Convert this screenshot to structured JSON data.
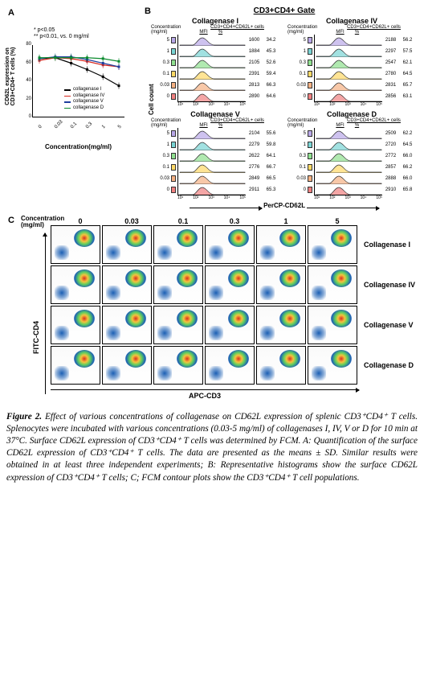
{
  "panelA": {
    "label": "A",
    "stat1": "* p<0.05",
    "stat2": "** p<0.01, vs. 0 mg/ml",
    "y_axis": "CD62L expression on CD3+CD4+ T cells (%)",
    "x_axis": "Concentration(mg/ml)",
    "y_ticks": [
      0,
      20,
      40,
      60,
      80
    ],
    "x_ticks": [
      "0",
      "0.03",
      "0.1",
      "0.3",
      "1",
      "5"
    ],
    "ylim": [
      0,
      80
    ],
    "series": [
      {
        "name": "collagenase I",
        "color": "#000000",
        "values": [
          65,
          66,
          60,
          53,
          45,
          35
        ]
      },
      {
        "name": "collagenase IV",
        "color": "#d9261c",
        "values": [
          63,
          66,
          65,
          62,
          58,
          56
        ]
      },
      {
        "name": "collagenase V",
        "color": "#1f3f9e",
        "values": [
          65,
          67,
          67,
          64,
          60,
          56
        ]
      },
      {
        "name": "collagenase D",
        "color": "#0b8a2e",
        "values": [
          66,
          66,
          66,
          66,
          65,
          62
        ]
      }
    ]
  },
  "panelB": {
    "label": "B",
    "gate_title": "CD3+CD4+ Gate",
    "conc_label_top": "Concentration",
    "conc_label_bot": "(mg/ml)",
    "cells_header": "CD3+CD4+CD62L+ cells",
    "mfi_label": "MFI",
    "pct_label": "%",
    "cell_count_label": "Cell count",
    "percp_label": "PerCP-CD62L",
    "axis_ticks": [
      "10¹",
      "10²",
      "10³",
      "10⁴",
      "10⁵"
    ],
    "conc_values": [
      "5",
      "1",
      "0.3",
      "0.1",
      "0.03",
      "0"
    ],
    "row_colors": [
      "#b9a8e8",
      "#79d4d4",
      "#8fe08f",
      "#ffd966",
      "#f5b183",
      "#f08080"
    ],
    "blocks": [
      {
        "title": "Collagenase I",
        "rows": [
          {
            "mfi": "1600",
            "pct": "34.2"
          },
          {
            "mfi": "1884",
            "pct": "45.3"
          },
          {
            "mfi": "2105",
            "pct": "52.6"
          },
          {
            "mfi": "2391",
            "pct": "59.4"
          },
          {
            "mfi": "2813",
            "pct": "66.3"
          },
          {
            "mfi": "2890",
            "pct": "64.6"
          }
        ]
      },
      {
        "title": "Collagenase IV",
        "rows": [
          {
            "mfi": "2188",
            "pct": "56.2"
          },
          {
            "mfi": "2297",
            "pct": "57.5"
          },
          {
            "mfi": "2547",
            "pct": "62.1"
          },
          {
            "mfi": "2780",
            "pct": "64.5"
          },
          {
            "mfi": "2831",
            "pct": "65.7"
          },
          {
            "mfi": "2856",
            "pct": "63.1"
          }
        ]
      },
      {
        "title": "Collagenase V",
        "rows": [
          {
            "mfi": "2104",
            "pct": "55.6"
          },
          {
            "mfi": "2279",
            "pct": "59.8"
          },
          {
            "mfi": "2622",
            "pct": "64.1"
          },
          {
            "mfi": "2776",
            "pct": "66.7"
          },
          {
            "mfi": "2849",
            "pct": "66.5"
          },
          {
            "mfi": "2911",
            "pct": "65.3"
          }
        ]
      },
      {
        "title": "Collagenase D",
        "rows": [
          {
            "mfi": "2509",
            "pct": "62.2"
          },
          {
            "mfi": "2720",
            "pct": "64.5"
          },
          {
            "mfi": "2772",
            "pct": "66.0"
          },
          {
            "mfi": "2857",
            "pct": "66.2"
          },
          {
            "mfi": "2888",
            "pct": "66.0"
          },
          {
            "mfi": "2910",
            "pct": "65.8"
          }
        ]
      }
    ]
  },
  "panelC": {
    "label": "C",
    "conc_title1": "Concentration",
    "conc_title2": "(mg/ml)",
    "concentrations": [
      "0",
      "0.03",
      "0.1",
      "0.3",
      "1",
      "5"
    ],
    "row_labels": [
      "Collagenase I",
      "Collagenase IV",
      "Collagenase V",
      "Collagenase D"
    ],
    "y_axis": "FITC-CD4",
    "x_axis": "APC-CD3",
    "pop_color_outer": "#1b5fb4",
    "pop_color_inner": "#d92f1f",
    "bg_color": "#ffffff"
  },
  "caption": {
    "fig_label": "Figure 2.",
    "body": " Effect of various concentrations of collagenase on CD62L expression of splenic CD3⁺CD4⁺ T cells. Splenocytes were incubated with various concentrations (0.03-5 mg/ml) of collagenases I, IV, V or D for 10 min at 37°C. Surface CD62L expression of CD3⁺CD4⁺ T cells was determined by FCM. A: Quantification of the surface CD62L expression of CD3⁺CD4⁺ T cells. The data are presented as the means ± SD. Similar results were obtained in at least three independent experiments; B: Representative histograms show the surface CD62L expression of CD3⁺CD4⁺ T cells; C; FCM contour plots show the CD3⁺CD4⁺ T cell populations."
  }
}
